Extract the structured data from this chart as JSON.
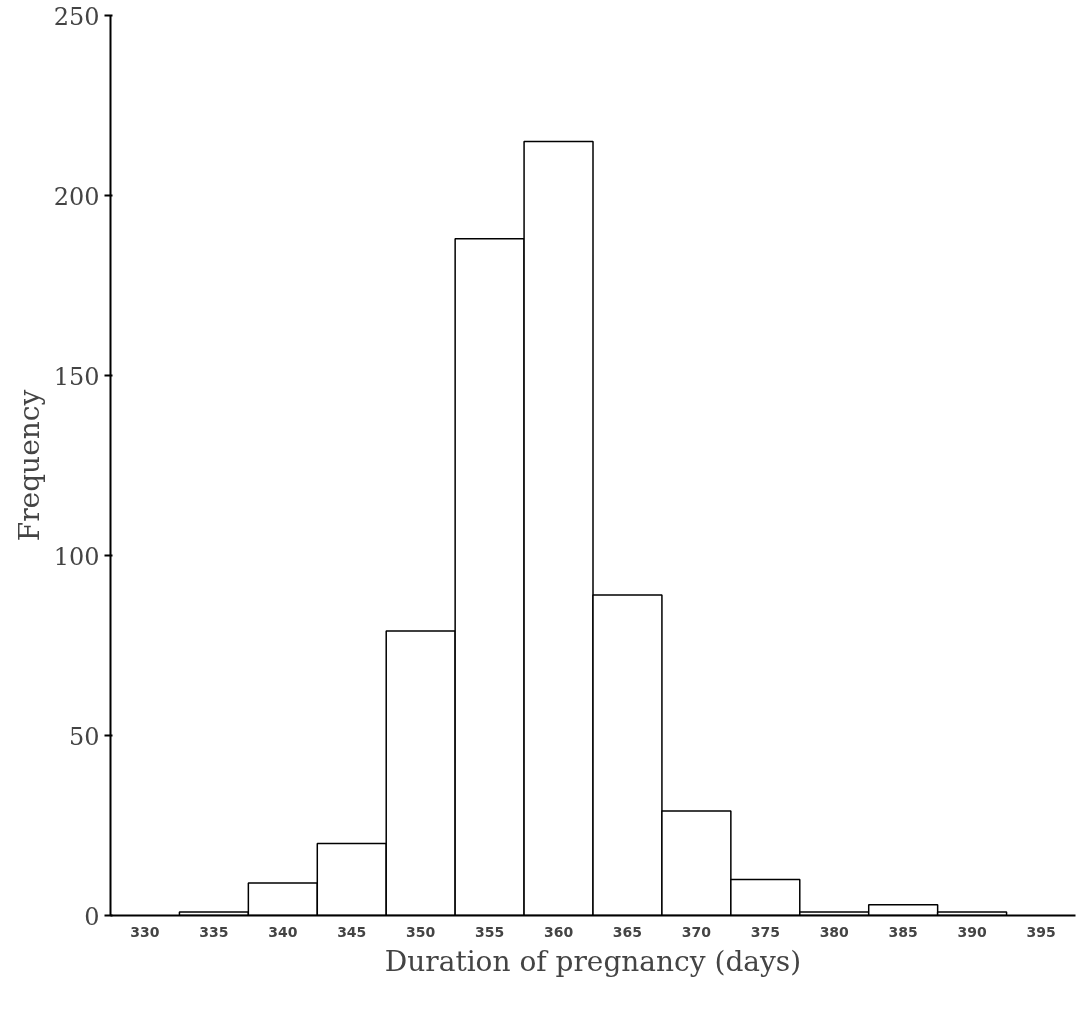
{
  "chart_data": {
    "type": "bar",
    "xlabel": "Duration of pregnancy (days)",
    "ylabel": "Frequency",
    "categories": [
      "330",
      "335",
      "340",
      "345",
      "350",
      "355",
      "360",
      "365",
      "370",
      "375",
      "380",
      "385",
      "390",
      "395"
    ],
    "values": [
      0,
      1,
      9,
      20,
      79,
      188,
      215,
      89,
      29,
      10,
      1,
      3,
      1,
      0
    ],
    "color": "#ffffff",
    "ylim": [
      0,
      250
    ],
    "yticks": [
      0,
      50,
      100,
      150,
      200,
      250
    ],
    "grid": false
  }
}
